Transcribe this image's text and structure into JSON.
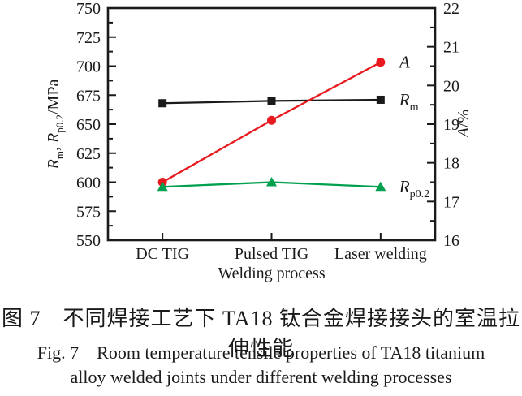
{
  "captions": {
    "zh": "图 7　不同焊接工艺下 TA18 钛合金焊接接头的室温拉伸性能",
    "en_line1": "Fig. 7　Room temperature tensile properties of TA18 titanium",
    "en_line2": "alloy welded joints under different welding processes"
  },
  "chart_data": {
    "type": "line",
    "title": "",
    "categories": [
      "DC TIG",
      "Pulsed TIG",
      "Laser welding"
    ],
    "xlabel": "Welding process",
    "grid": false,
    "legend_position": "end-of-line labels",
    "left_axis": {
      "label_text": "Rm, Rp0.2/MPa",
      "label_parts": [
        {
          "text": "R",
          "italic": true
        },
        {
          "text": "m",
          "sub": true
        },
        {
          "text": ", "
        },
        {
          "text": "R",
          "italic": true
        },
        {
          "text": "p0.2",
          "sub": true
        },
        {
          "text": "/MPa"
        }
      ],
      "min": 550,
      "max": 750,
      "major_step": 25,
      "minor_step": 12.5,
      "tick_labels": [
        "550",
        "575",
        "600",
        "625",
        "650",
        "675",
        "700",
        "725",
        "750"
      ]
    },
    "right_axis": {
      "label_text": "A/%",
      "label_parts": [
        {
          "text": "A",
          "italic": true
        },
        {
          "text": "/%"
        }
      ],
      "min": 16,
      "max": 22,
      "major_step": 1,
      "minor_step": 0.5,
      "tick_labels": [
        "16",
        "17",
        "18",
        "19",
        "20",
        "21",
        "22"
      ]
    },
    "series": [
      {
        "name": "Rm",
        "axis": "left",
        "marker": "square",
        "color": "#1a1a1a",
        "values": [
          668,
          670,
          671
        ],
        "label_parts": [
          {
            "text": "R",
            "italic": true
          },
          {
            "text": "m",
            "sub": true
          }
        ]
      },
      {
        "name": "A",
        "axis": "right",
        "marker": "circle",
        "color": "#e8191f",
        "values": [
          17.5,
          19.1,
          20.6
        ],
        "label_parts": [
          {
            "text": "A",
            "italic": true
          }
        ]
      },
      {
        "name": "Rp0.2",
        "axis": "left",
        "marker": "triangle",
        "color": "#00a04e",
        "values": [
          596,
          600,
          596
        ],
        "label_parts": [
          {
            "text": "R",
            "italic": true
          },
          {
            "text": "p0.2",
            "sub": true
          }
        ]
      }
    ],
    "axis_color": "#1a1a1a"
  }
}
